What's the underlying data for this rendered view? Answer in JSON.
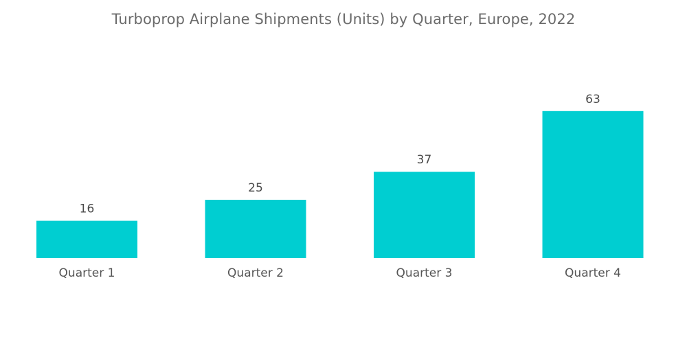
{
  "chart_data": {
    "type": "bar",
    "title": "Turboprop Airplane Shipments (Units) by Quarter, Europe, 2022",
    "categories": [
      "Quarter 1",
      "Quarter 2",
      "Quarter 3",
      "Quarter 4"
    ],
    "values": [
      16,
      25,
      37,
      63
    ],
    "xlabel": "",
    "ylabel": "",
    "ylim": [
      0,
      80
    ],
    "grid": false,
    "legend": "none",
    "bar_color": "#00ced1"
  }
}
